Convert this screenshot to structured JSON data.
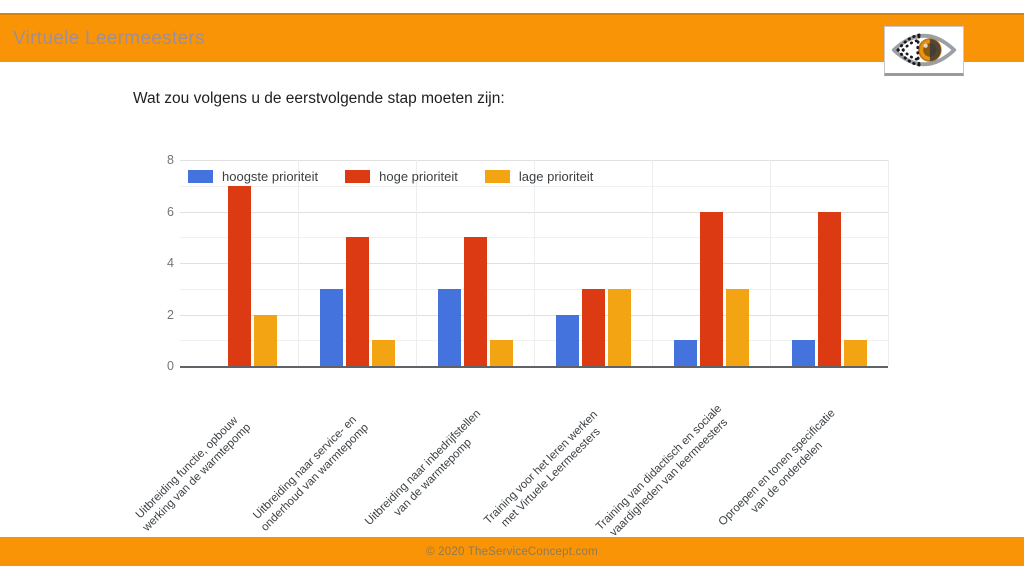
{
  "header": {
    "title": "Virtuele Leermeesters"
  },
  "logo": {
    "icon": "eye-logo-icon"
  },
  "colors": {
    "brand_orange": "#f89406",
    "header_title_text": "#a18e93",
    "footer_text": "#8f7a55",
    "series_blue": "#4573de",
    "series_red": "#dc3a12",
    "series_orange": "#f2a413",
    "grid_major": "#e0e0e0",
    "grid_minor": "#f0f0f0",
    "axis_line": "#5f6368"
  },
  "chart_data": {
    "type": "bar",
    "title": "Wat zou volgens u de eerstvolgende stap moeten zijn:",
    "categories": [
      "Uitbreiding functie, opbouw\nwerking van de warmtepomp",
      "Uitbreiding naar service- en\nonderhoud van warmtepomp",
      "Uitbreiding naar inbedrijfstellen\nvan de warmtepomp",
      "Training voor het leren werken\nmet Virtuele Leermeesters",
      "Training van didactisch en sociale\nvaardigheden van leermeesters",
      "Oproepen en tonen specificatie\nvan de onderdelen"
    ],
    "series": [
      {
        "name": "hoogste prioriteit",
        "color": "#4573de",
        "values": [
          0,
          3,
          3,
          2,
          1,
          1
        ]
      },
      {
        "name": "hoge prioriteit",
        "color": "#dc3a12",
        "values": [
          7,
          5,
          5,
          3,
          6,
          6
        ]
      },
      {
        "name": "lage prioriteit",
        "color": "#f2a413",
        "values": [
          2,
          1,
          1,
          3,
          3,
          1
        ]
      }
    ],
    "ylim": [
      0,
      8
    ],
    "yticks": [
      0,
      2,
      4,
      6,
      8
    ],
    "grid": true,
    "legend_position": "top-left",
    "xlabel": "",
    "ylabel": ""
  },
  "footer": {
    "copyright": "© 2020  TheServiceConcept.com"
  }
}
